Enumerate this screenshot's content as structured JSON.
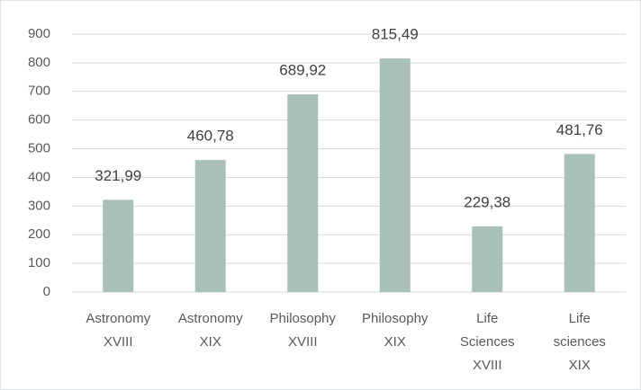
{
  "chart_data": {
    "type": "bar",
    "categories": [
      [
        "Astronomy",
        "XVIII"
      ],
      [
        "Astronomy",
        "XIX"
      ],
      [
        "Philosophy",
        "XVIII"
      ],
      [
        "Philosophy",
        "XIX"
      ],
      [
        "Life",
        "Sciences",
        "XVIII"
      ],
      [
        "Life",
        "sciences",
        "XIX"
      ]
    ],
    "values": [
      321.99,
      460.78,
      689.92,
      815.49,
      229.38,
      481.76
    ],
    "value_labels": [
      "321,99",
      "460,78",
      "689,92",
      "815,49",
      "229,38",
      "481,76"
    ],
    "color": "#a8c0b5",
    "ylim": [
      0,
      900
    ],
    "yticks": [
      0,
      100,
      200,
      300,
      400,
      500,
      600,
      700,
      800,
      900
    ],
    "grid": true
  }
}
